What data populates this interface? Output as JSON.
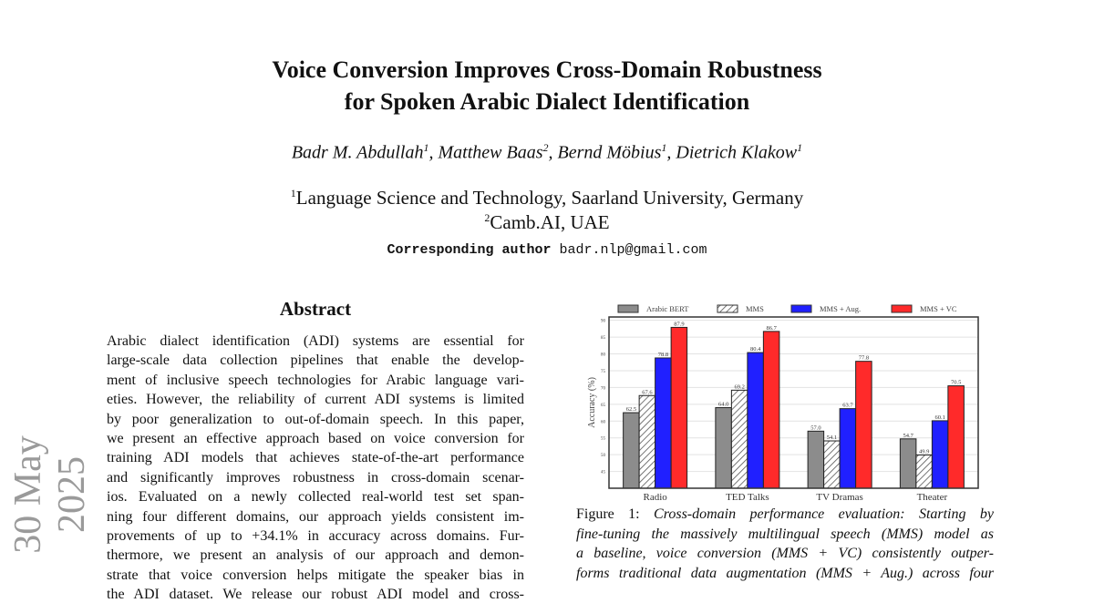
{
  "side_stamp": "30 May 2025",
  "paper": {
    "title_line1": "Voice Conversion Improves Cross-Domain Robustness",
    "title_line2": "for Spoken Arabic Dialect Identification",
    "authors": [
      {
        "name": "Badr M. Abdullah",
        "aff": "1"
      },
      {
        "name": "Matthew Baas",
        "aff": "2"
      },
      {
        "name": "Bernd Möbius",
        "aff": "1"
      },
      {
        "name": "Dietrich Klakow",
        "aff": "1"
      }
    ],
    "affiliations": [
      {
        "num": "1",
        "text": "Language Science and Technology, Saarland University, Germany"
      },
      {
        "num": "2",
        "text": "Camb.AI, UAE"
      }
    ],
    "corresponding_label": "Corresponding author",
    "corresponding_email": "badr.nlp@gmail.com"
  },
  "abstract": {
    "heading": "Abstract",
    "lines": [
      "Arabic dialect identification (ADI) systems are essential for",
      "large-scale data collection pipelines that enable the develop-",
      "ment of inclusive speech technologies for Arabic language vari-",
      "eties. However, the reliability of current ADI systems is limited",
      "by poor generalization to out-of-domain speech. In this paper,",
      "we present an effective approach based on voice conversion for",
      "training ADI models that achieves state-of-the-art performance",
      "and significantly improves robustness in cross-domain scenar-",
      "ios. Evaluated on a newly collected real-world test set span-",
      "ning four different domains, our approach yields consistent im-",
      "provements of up to +34.1% in accuracy across domains. Fur-",
      "thermore, we present an analysis of our approach and demon-",
      "strate that voice conversion helps mitigate the speaker bias in",
      "the ADI dataset. We release our robust ADI model and cross-"
    ]
  },
  "caption": {
    "label": "Figure 1:",
    "lines": [
      "Cross-domain performance evaluation: Starting by",
      "fine-tuning the massively multilingual speech (MMS) model as",
      "a baseline, voice conversion (MMS + VC) consistently outper-",
      "forms traditional data augmentation (MMS + Aug.) across four"
    ]
  },
  "chart_data": {
    "type": "bar",
    "title": "",
    "xlabel": "",
    "ylabel": "Accuracy (%)",
    "ylim": [
      40,
      91
    ],
    "yticks": [
      45,
      50,
      55,
      60,
      65,
      70,
      75,
      80,
      85,
      90
    ],
    "grid": true,
    "legend_position": "top",
    "categories": [
      "Radio",
      "TED Talks",
      "TV Dramas",
      "Theater"
    ],
    "series": [
      {
        "name": "Arabic BERT",
        "values": [
          62.5,
          64.0,
          57.0,
          54.7
        ],
        "color": "#8c8c8c",
        "hatch": false
      },
      {
        "name": "MMS",
        "values": [
          67.6,
          69.2,
          54.1,
          49.9
        ],
        "color": "#ffffff",
        "hatch": true
      },
      {
        "name": "MMS + Aug.",
        "values": [
          78.8,
          80.4,
          63.7,
          60.1
        ],
        "color": "#2020ff",
        "hatch": false
      },
      {
        "name": "MMS + VC",
        "values": [
          87.9,
          86.7,
          77.8,
          70.5
        ],
        "color": "#ff2a2a",
        "hatch": false
      }
    ]
  }
}
